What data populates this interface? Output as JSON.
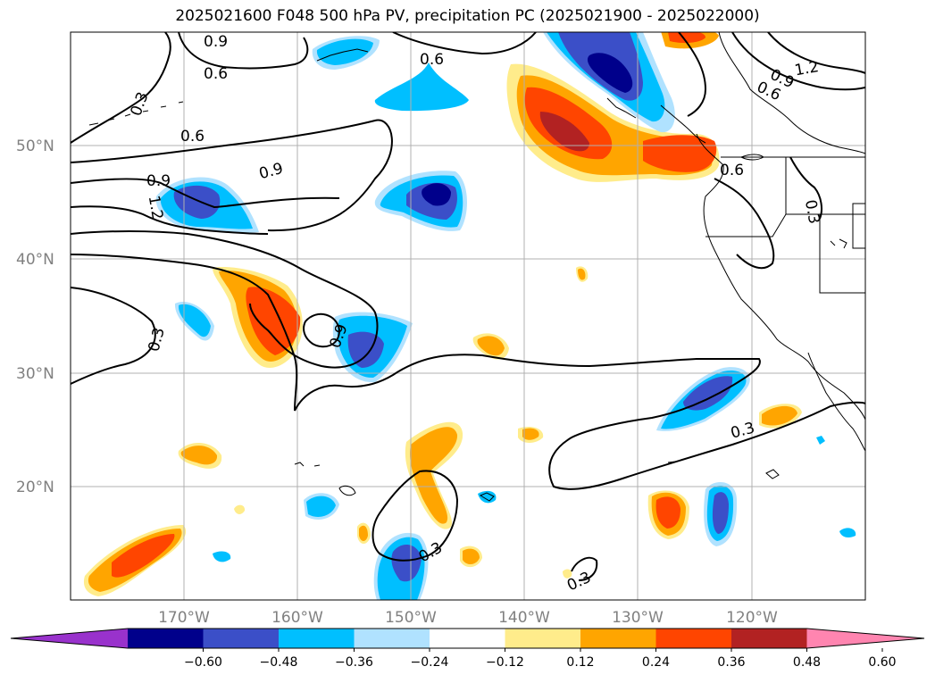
{
  "title": "2025021600 F048 500 hPa PV, precipitation PC (2025021900 - 2025022000)",
  "map": {
    "projection": "PlateCarree",
    "lon_range": [
      -180,
      -110
    ],
    "lat_range": [
      10,
      60
    ],
    "lat_labels": [
      "50°N",
      "40°N",
      "30°N",
      "20°N"
    ],
    "lon_labels": [
      "170°W",
      "160°W",
      "150°W",
      "140°W",
      "130°W",
      "120°W"
    ],
    "gridlines": true
  },
  "contour_labels": [
    "0.9",
    "0.6",
    "0.6",
    "0.3",
    "0.6",
    "0.9",
    "0.9",
    "1.2",
    "0.3",
    "0.9",
    "1.2",
    "0.9",
    "0.6",
    "0.6",
    "0.3",
    "0.3",
    "0.3",
    "0.3"
  ],
  "colorbar": {
    "extend": "both",
    "ticks": [
      "−0.60",
      "−0.48",
      "−0.36",
      "−0.24",
      "−0.12",
      "0.12",
      "0.24",
      "0.36",
      "0.48",
      "0.60"
    ],
    "colors": [
      "#9932cc",
      "#00008b",
      "#3b4fc8",
      "#00bfff",
      "#b0e2ff",
      "#ffffff",
      "#ffec8b",
      "#ffa500",
      "#ff4500",
      "#b22222",
      "#ff85b0"
    ]
  }
}
